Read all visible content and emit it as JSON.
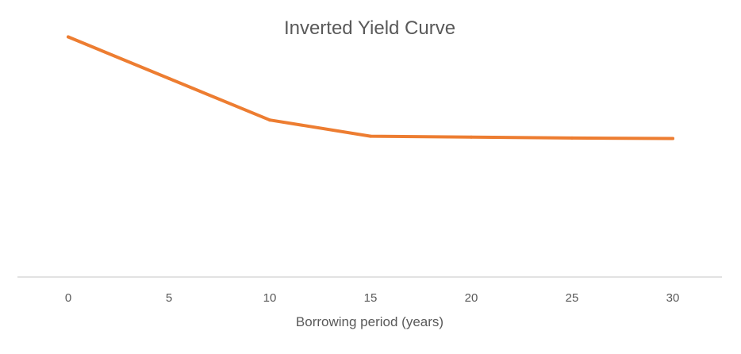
{
  "chart_data": {
    "type": "line",
    "title": "Inverted Yield Curve",
    "xlabel": "Borrowing period (years)",
    "ylabel": "",
    "x": [
      0,
      5,
      10,
      15,
      20,
      25,
      30
    ],
    "series": [
      {
        "values": [
          5.2,
          4.3,
          3.4,
          3.05,
          3.03,
          3.01,
          3.0
        ],
        "color": "#ED7D31"
      }
    ],
    "xticks": [
      "0",
      "5",
      "10",
      "15",
      "20",
      "25",
      "30"
    ],
    "xlim": [
      0,
      30
    ],
    "ylim": [
      0,
      6
    ],
    "y_axis_visible": false,
    "grid": false,
    "legend": "none"
  }
}
